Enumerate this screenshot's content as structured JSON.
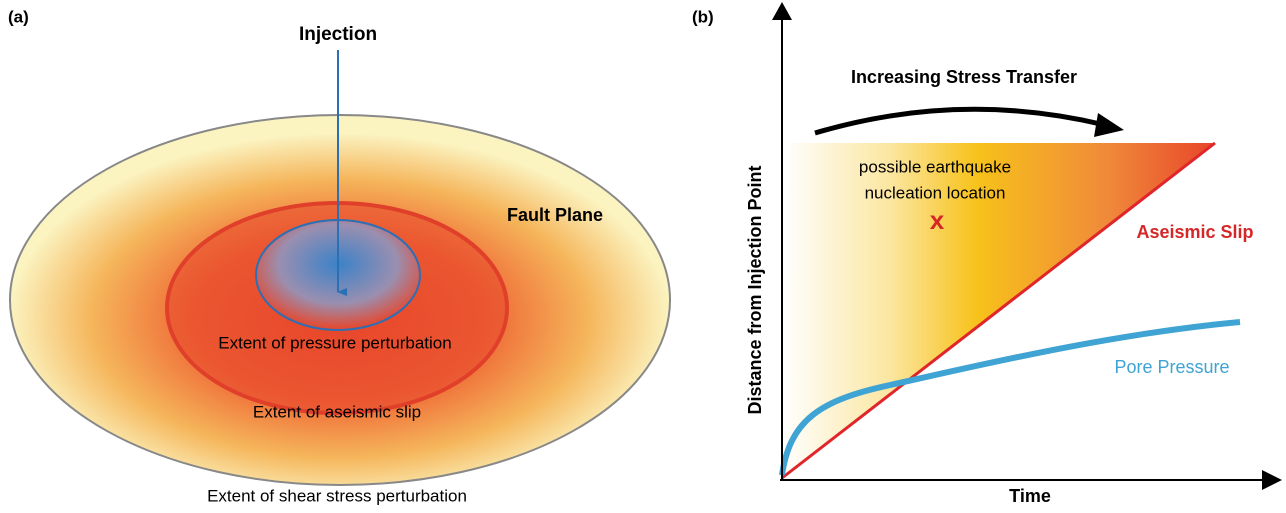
{
  "panel_a": {
    "label": "(a)",
    "injection": "Injection",
    "fault_plane": "Fault Plane",
    "pressure_extent": "Extent of pressure perturbation",
    "aseismic_extent": "Extent of aseismic slip",
    "shear_extent": "Extent of shear stress perturbation"
  },
  "panel_b": {
    "label": "(b)",
    "stress_transfer": "Increasing Stress Transfer",
    "nucleation": [
      "possible earthquake",
      "nucleation location"
    ],
    "marker": "x",
    "aseismic_slip": "Aseismic Slip",
    "pore_pressure": "Pore Pressure",
    "y_axis": "Distance from Injection Point",
    "x_axis": "Time"
  }
}
